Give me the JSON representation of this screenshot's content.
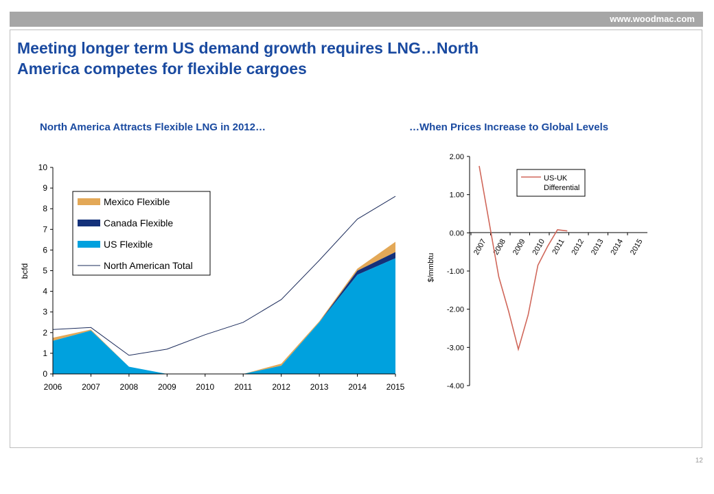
{
  "header": {
    "url": "www.woodmac.com",
    "title_line1": "Meeting longer term US demand growth requires LNG…North",
    "title_line2": "America competes for flexible cargoes"
  },
  "page_number": "12",
  "colors": {
    "brand_blue": "#1a4aa0",
    "mexico": "#e3a857",
    "canada": "#14317a",
    "us": "#00a1de",
    "total_line": "#1a2a5a",
    "differential_line": "#d0675a"
  },
  "chart_data": [
    {
      "type": "area",
      "title": "North America Attracts Flexible LNG in 2012…",
      "ylabel": "bcfd",
      "xlabel": "",
      "x": [
        "2006",
        "2007",
        "2008",
        "2009",
        "2010",
        "2011",
        "2012",
        "2013",
        "2014",
        "2015"
      ],
      "ylim": [
        0,
        10
      ],
      "yticks": [
        "0",
        "1",
        "2",
        "3",
        "4",
        "5",
        "6",
        "7",
        "8",
        "9",
        "10"
      ],
      "grid": false,
      "legend_position": "top-left",
      "series": [
        {
          "name": "Mexico Flexible",
          "kind": "stacked-area",
          "values": [
            0.15,
            0.05,
            0.0,
            0.0,
            0.0,
            0.0,
            0.1,
            0.05,
            0.1,
            0.5
          ]
        },
        {
          "name": "Canada Flexible",
          "kind": "stacked-area",
          "values": [
            0.0,
            0.0,
            0.0,
            0.0,
            0.0,
            0.0,
            0.0,
            0.0,
            0.2,
            0.3
          ]
        },
        {
          "name": "US Flexible",
          "kind": "stacked-area",
          "values": [
            1.6,
            2.1,
            0.35,
            0.0,
            0.0,
            0.0,
            0.4,
            2.5,
            4.8,
            5.6
          ]
        },
        {
          "name": "North American Total",
          "kind": "line",
          "values": [
            2.15,
            2.25,
            0.9,
            1.2,
            1.9,
            2.5,
            3.6,
            5.5,
            7.5,
            8.6
          ]
        }
      ]
    },
    {
      "type": "line",
      "title": "…When Prices Increase to Global Levels",
      "ylabel": "$/mmbtu",
      "xlabel": "",
      "x": [
        "2007",
        "2008",
        "2009",
        "2010",
        "2011",
        "2012",
        "2013",
        "2014",
        "2015"
      ],
      "ylim": [
        -4.0,
        2.0
      ],
      "yticks": [
        "-4.00",
        "-3.00",
        "-2.00",
        "-1.00",
        "0.00",
        "1.00",
        "2.00"
      ],
      "grid": false,
      "legend_position": "top-center",
      "series": [
        {
          "name": "US-UK Differential",
          "points": [
            [
              2007.0,
              1.75
            ],
            [
              2008.0,
              -1.15
            ],
            [
              2008.5,
              -2.05
            ],
            [
              2009.0,
              -3.05
            ],
            [
              2009.5,
              -2.15
            ],
            [
              2010.0,
              -0.85
            ],
            [
              2010.5,
              -0.35
            ],
            [
              2011.0,
              0.08
            ],
            [
              2011.5,
              0.05
            ]
          ]
        }
      ]
    }
  ]
}
